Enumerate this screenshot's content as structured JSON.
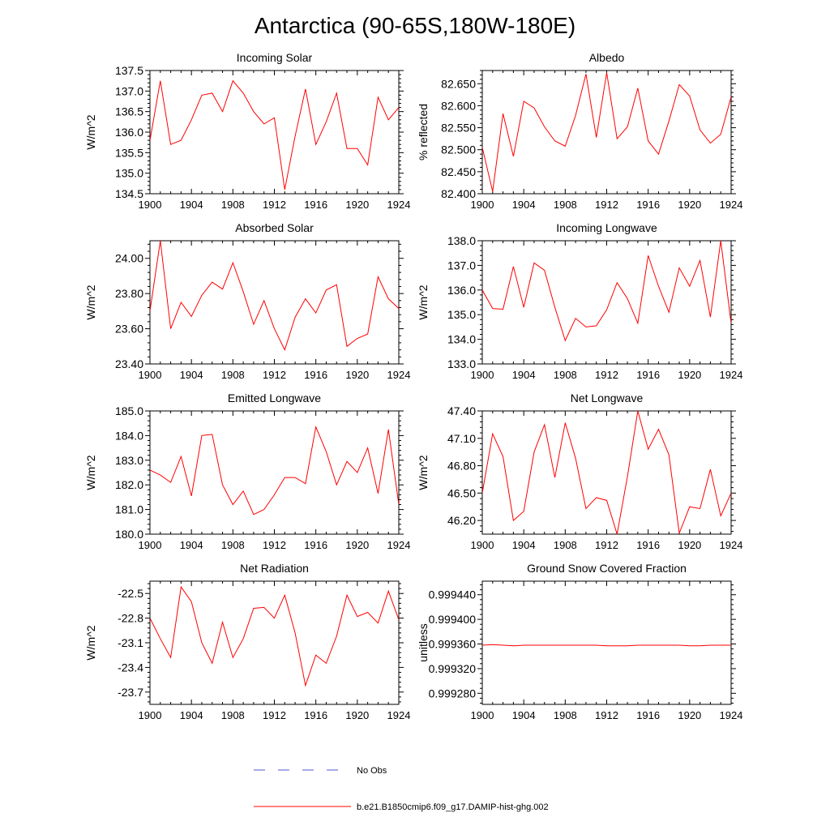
{
  "figure": {
    "title": "Antarctica (90-65S,180W-180E)",
    "colors": {
      "model_line": "#ff0000",
      "obs_line": "#4a5bd6",
      "axis": "#000000",
      "background": "#ffffff"
    }
  },
  "legend": {
    "items": [
      {
        "label": "No Obs",
        "style": "dashed",
        "color": "#4a5bd6"
      },
      {
        "label": "b.e21.B1850cmip6.f09_g17.DAMIP-hist-ghg.002",
        "style": "solid",
        "color": "#ff0000"
      }
    ]
  },
  "chart_data": [
    {
      "type": "line",
      "title": "Incoming Solar",
      "xlabel": "",
      "ylabel": "W/m^2",
      "xlim": [
        1900,
        1924
      ],
      "ylim": [
        134.5,
        137.5
      ],
      "xticks": [
        1900,
        1904,
        1908,
        1912,
        1916,
        1920,
        1924
      ],
      "xtick_labels": [
        "1900",
        "1904",
        "1908",
        "1912",
        "1916",
        "1920",
        "1924"
      ],
      "yticks": [
        134.5,
        135.0,
        135.5,
        136.0,
        136.5,
        137.0,
        137.5
      ],
      "ytick_labels": [
        "134.5",
        "135.0",
        "135.5",
        "136.0",
        "136.5",
        "137.0",
        "137.5"
      ],
      "x": [
        1900,
        1901,
        1902,
        1903,
        1904,
        1905,
        1906,
        1907,
        1908,
        1909,
        1910,
        1911,
        1912,
        1913,
        1914,
        1915,
        1916,
        1917,
        1918,
        1919,
        1920,
        1921,
        1922,
        1923,
        1924
      ],
      "series": [
        {
          "name": "b.e21.B1850cmip6.f09_g17.DAMIP-hist-ghg.002",
          "values": [
            135.8,
            137.25,
            135.7,
            135.8,
            136.3,
            136.9,
            136.95,
            136.5,
            137.25,
            136.95,
            136.5,
            136.2,
            136.35,
            134.6,
            135.9,
            137.05,
            135.7,
            136.25,
            136.95,
            135.6,
            135.6,
            135.2,
            136.85,
            136.3,
            136.6
          ]
        }
      ]
    },
    {
      "type": "line",
      "title": "Albedo",
      "xlabel": "",
      "ylabel": "% reflected",
      "xlim": [
        1900,
        1924
      ],
      "ylim": [
        82.4,
        82.68
      ],
      "xticks": [
        1900,
        1904,
        1908,
        1912,
        1916,
        1920,
        1924
      ],
      "xtick_labels": [
        "1900",
        "1904",
        "1908",
        "1912",
        "1916",
        "1920",
        "1924"
      ],
      "yticks": [
        82.4,
        82.45,
        82.5,
        82.55,
        82.6,
        82.65
      ],
      "ytick_labels": [
        "82.400",
        "82.450",
        "82.500",
        "82.550",
        "82.600",
        "82.650"
      ],
      "x": [
        1900,
        1901,
        1902,
        1903,
        1904,
        1905,
        1906,
        1907,
        1908,
        1909,
        1910,
        1911,
        1912,
        1913,
        1914,
        1915,
        1916,
        1917,
        1918,
        1919,
        1920,
        1921,
        1922,
        1923,
        1924
      ],
      "series": [
        {
          "name": "b.e21.B1850cmip6.f09_g17.DAMIP-hist-ghg.002",
          "values": [
            82.505,
            82.405,
            82.582,
            82.485,
            82.61,
            82.595,
            82.552,
            82.52,
            82.508,
            82.578,
            82.672,
            82.528,
            82.675,
            82.525,
            82.552,
            82.64,
            82.52,
            82.49,
            82.565,
            82.648,
            82.622,
            82.545,
            82.515,
            82.535,
            82.62
          ]
        }
      ]
    },
    {
      "type": "line",
      "title": "Absorbed Solar",
      "xlabel": "",
      "ylabel": "W/m^2",
      "xlim": [
        1900,
        1924
      ],
      "ylim": [
        23.4,
        24.1
      ],
      "xticks": [
        1900,
        1904,
        1908,
        1912,
        1916,
        1920,
        1924
      ],
      "xtick_labels": [
        "1900",
        "1904",
        "1908",
        "1912",
        "1916",
        "1920",
        "1924"
      ],
      "yticks": [
        23.4,
        23.6,
        23.8,
        24.0
      ],
      "ytick_labels": [
        "23.40",
        "23.60",
        "23.80",
        "24.00"
      ],
      "x": [
        1900,
        1901,
        1902,
        1903,
        1904,
        1905,
        1906,
        1907,
        1908,
        1909,
        1910,
        1911,
        1912,
        1913,
        1914,
        1915,
        1916,
        1917,
        1918,
        1919,
        1920,
        1921,
        1922,
        1923,
        1924
      ],
      "series": [
        {
          "name": "b.e21.B1850cmip6.f09_g17.DAMIP-hist-ghg.002",
          "values": [
            23.7,
            24.1,
            23.6,
            23.75,
            23.67,
            23.79,
            23.865,
            23.825,
            23.975,
            23.81,
            23.625,
            23.76,
            23.6,
            23.48,
            23.665,
            23.77,
            23.69,
            23.82,
            23.85,
            23.5,
            23.545,
            23.57,
            23.895,
            23.77,
            23.715
          ]
        }
      ]
    },
    {
      "type": "line",
      "title": "Incoming Longwave",
      "xlabel": "",
      "ylabel": "W/m^2",
      "xlim": [
        1900,
        1924
      ],
      "ylim": [
        133.0,
        138.0
      ],
      "xticks": [
        1900,
        1904,
        1908,
        1912,
        1916,
        1920,
        1924
      ],
      "xtick_labels": [
        "1900",
        "1904",
        "1908",
        "1912",
        "1916",
        "1920",
        "1924"
      ],
      "yticks": [
        133.0,
        134.0,
        135.0,
        136.0,
        137.0,
        138.0
      ],
      "ytick_labels": [
        "133.0",
        "134.0",
        "135.0",
        "136.0",
        "137.0",
        "138.0"
      ],
      "x": [
        1900,
        1901,
        1902,
        1903,
        1904,
        1905,
        1906,
        1907,
        1908,
        1909,
        1910,
        1911,
        1912,
        1913,
        1914,
        1915,
        1916,
        1917,
        1918,
        1919,
        1920,
        1921,
        1922,
        1923,
        1924
      ],
      "series": [
        {
          "name": "b.e21.B1850cmip6.f09_g17.DAMIP-hist-ghg.002",
          "values": [
            136.0,
            135.25,
            135.22,
            136.95,
            135.3,
            137.1,
            136.8,
            135.3,
            133.95,
            134.85,
            134.5,
            134.55,
            135.2,
            136.3,
            135.65,
            134.65,
            137.4,
            136.15,
            135.1,
            136.9,
            136.15,
            137.2,
            134.9,
            138.0,
            134.65
          ]
        }
      ]
    },
    {
      "type": "line",
      "title": "Emitted Longwave",
      "xlabel": "",
      "ylabel": "W/m^2",
      "xlim": [
        1900,
        1924
      ],
      "ylim": [
        180.0,
        185.0
      ],
      "xticks": [
        1900,
        1904,
        1908,
        1912,
        1916,
        1920,
        1924
      ],
      "xtick_labels": [
        "1900",
        "1904",
        "1908",
        "1912",
        "1916",
        "1920",
        "1924"
      ],
      "yticks": [
        180.0,
        181.0,
        182.0,
        183.0,
        184.0,
        185.0
      ],
      "ytick_labels": [
        "180.0",
        "181.0",
        "182.0",
        "183.0",
        "184.0",
        "185.0"
      ],
      "x": [
        1900,
        1901,
        1902,
        1903,
        1904,
        1905,
        1906,
        1907,
        1908,
        1909,
        1910,
        1911,
        1912,
        1913,
        1914,
        1915,
        1916,
        1917,
        1918,
        1919,
        1920,
        1921,
        1922,
        1923,
        1924
      ],
      "series": [
        {
          "name": "b.e21.B1850cmip6.f09_g17.DAMIP-hist-ghg.002",
          "values": [
            182.6,
            182.4,
            182.1,
            183.15,
            181.55,
            184.0,
            184.05,
            182.0,
            181.2,
            181.75,
            180.8,
            181.0,
            181.6,
            182.3,
            182.3,
            182.05,
            184.35,
            183.35,
            182.0,
            182.95,
            182.5,
            183.5,
            181.65,
            184.25,
            181.2
          ]
        }
      ]
    },
    {
      "type": "line",
      "title": "Net Longwave",
      "xlabel": "",
      "ylabel": "W/m^2",
      "xlim": [
        1900,
        1924
      ],
      "ylim": [
        46.05,
        47.4
      ],
      "xticks": [
        1900,
        1904,
        1908,
        1912,
        1916,
        1920,
        1924
      ],
      "xtick_labels": [
        "1900",
        "1904",
        "1908",
        "1912",
        "1916",
        "1920",
        "1924"
      ],
      "yticks": [
        46.2,
        46.5,
        46.8,
        47.1,
        47.4
      ],
      "ytick_labels": [
        "46.20",
        "46.50",
        "46.80",
        "47.10",
        "47.40"
      ],
      "x": [
        1900,
        1901,
        1902,
        1903,
        1904,
        1905,
        1906,
        1907,
        1908,
        1909,
        1910,
        1911,
        1912,
        1913,
        1914,
        1915,
        1916,
        1917,
        1918,
        1919,
        1920,
        1921,
        1922,
        1923,
        1924
      ],
      "series": [
        {
          "name": "b.e21.B1850cmip6.f09_g17.DAMIP-hist-ghg.002",
          "values": [
            46.5,
            47.15,
            46.9,
            46.2,
            46.3,
            46.95,
            47.25,
            46.67,
            47.27,
            46.88,
            46.33,
            46.45,
            46.42,
            46.05,
            46.68,
            47.4,
            46.98,
            47.2,
            46.92,
            46.06,
            46.35,
            46.33,
            46.76,
            46.25,
            46.5
          ]
        }
      ]
    },
    {
      "type": "line",
      "title": "Net Radiation",
      "xlabel": "",
      "ylabel": "W/m^2",
      "xlim": [
        1900,
        1924
      ],
      "ylim": [
        -23.85,
        -22.35
      ],
      "xticks": [
        1900,
        1904,
        1908,
        1912,
        1916,
        1920,
        1924
      ],
      "xtick_labels": [
        "1900",
        "1904",
        "1908",
        "1912",
        "1916",
        "1920",
        "1924"
      ],
      "yticks": [
        -23.7,
        -23.4,
        -23.1,
        -22.8,
        -22.5
      ],
      "ytick_labels": [
        "-23.7",
        "-23.4",
        "-23.1",
        "-22.8",
        "-22.5"
      ],
      "x": [
        1900,
        1901,
        1902,
        1903,
        1904,
        1905,
        1906,
        1907,
        1908,
        1909,
        1910,
        1911,
        1912,
        1913,
        1914,
        1915,
        1916,
        1917,
        1918,
        1919,
        1920,
        1921,
        1922,
        1923,
        1924
      ],
      "series": [
        {
          "name": "b.e21.B1850cmip6.f09_g17.DAMIP-hist-ghg.002",
          "values": [
            -22.8,
            -23.05,
            -23.28,
            -22.42,
            -22.6,
            -23.1,
            -23.35,
            -22.85,
            -23.28,
            -23.05,
            -22.68,
            -22.67,
            -22.8,
            -22.52,
            -22.98,
            -23.62,
            -23.25,
            -23.35,
            -23.02,
            -22.52,
            -22.78,
            -22.73,
            -22.86,
            -22.47,
            -22.82
          ]
        }
      ]
    },
    {
      "type": "line",
      "title": "Ground Snow Covered Fraction",
      "xlabel": "",
      "ylabel": "unitless",
      "xlim": [
        1900,
        1924
      ],
      "ylim": [
        0.999262,
        0.999462
      ],
      "xticks": [
        1900,
        1904,
        1908,
        1912,
        1916,
        1920,
        1924
      ],
      "xtick_labels": [
        "1900",
        "1904",
        "1908",
        "1912",
        "1916",
        "1920",
        "1924"
      ],
      "yticks": [
        0.99928,
        0.99932,
        0.99936,
        0.9994,
        0.99944
      ],
      "ytick_labels": [
        "0.999280",
        "0.999320",
        "0.999360",
        "0.999400",
        "0.999440"
      ],
      "x": [
        1900,
        1901,
        1902,
        1903,
        1904,
        1905,
        1906,
        1907,
        1908,
        1909,
        1910,
        1911,
        1912,
        1913,
        1914,
        1915,
        1916,
        1917,
        1918,
        1919,
        1920,
        1921,
        1922,
        1923,
        1924
      ],
      "series": [
        {
          "name": "b.e21.B1850cmip6.f09_g17.DAMIP-hist-ghg.002",
          "values": [
            0.999358,
            0.999359,
            0.999358,
            0.999357,
            0.999358,
            0.999358,
            0.999358,
            0.999358,
            0.999358,
            0.999358,
            0.999358,
            0.999358,
            0.999357,
            0.999357,
            0.999357,
            0.999358,
            0.999358,
            0.999358,
            0.999358,
            0.999358,
            0.999357,
            0.999357,
            0.999358,
            0.999358,
            0.999358
          ]
        }
      ]
    }
  ]
}
